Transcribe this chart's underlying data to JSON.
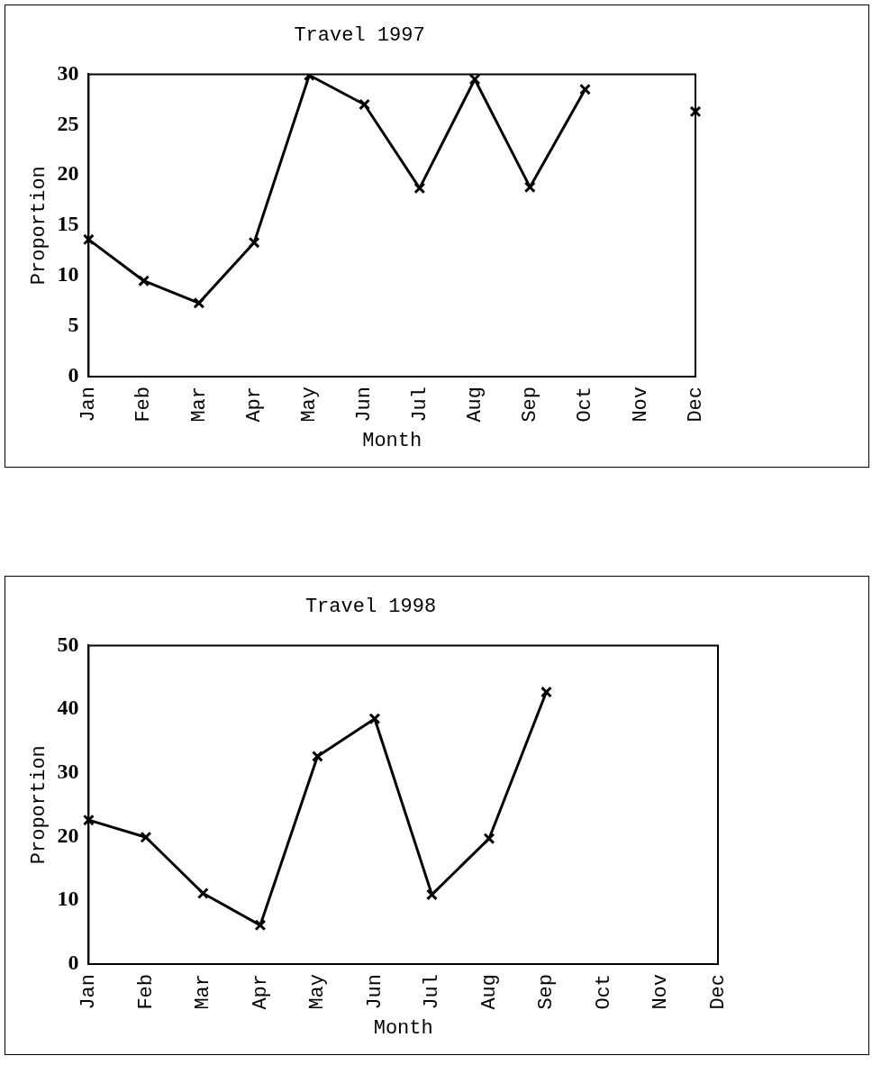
{
  "chart_data": [
    {
      "type": "line",
      "title": "Travel 1997",
      "xlabel": "Month",
      "ylabel": "Proportion",
      "categories": [
        "Jan",
        "Feb",
        "Mar",
        "Apr",
        "May",
        "Jun",
        "Jul",
        "Aug",
        "Sep",
        "Oct",
        "Nov",
        "Dec"
      ],
      "values": [
        13.6,
        9.5,
        7.3,
        13.3,
        29.9,
        27.0,
        18.7,
        29.5,
        18.8,
        28.5,
        null,
        26.3
      ],
      "color": "#000000",
      "ylim": [
        0,
        30
      ],
      "yticks": [
        0,
        5,
        10,
        15,
        20,
        25,
        30
      ],
      "marker": "cross",
      "line_style": "solid",
      "grid": false,
      "legend": false
    },
    {
      "type": "line",
      "title": "Travel 1998",
      "xlabel": "Month",
      "ylabel": "Proportion",
      "categories": [
        "Jan",
        "Feb",
        "Mar",
        "Apr",
        "May",
        "Jun",
        "Jul",
        "Aug",
        "Sep",
        "Oct",
        "Nov",
        "Dec"
      ],
      "values": [
        22.6,
        19.9,
        11.1,
        6.1,
        32.6,
        38.5,
        10.9,
        19.7,
        42.7,
        null,
        null,
        null
      ],
      "color": "#000000",
      "ylim": [
        0,
        50
      ],
      "yticks": [
        0,
        10,
        20,
        30,
        40,
        50
      ],
      "marker": "cross",
      "line_style": "solid",
      "grid": false,
      "legend": false
    }
  ]
}
